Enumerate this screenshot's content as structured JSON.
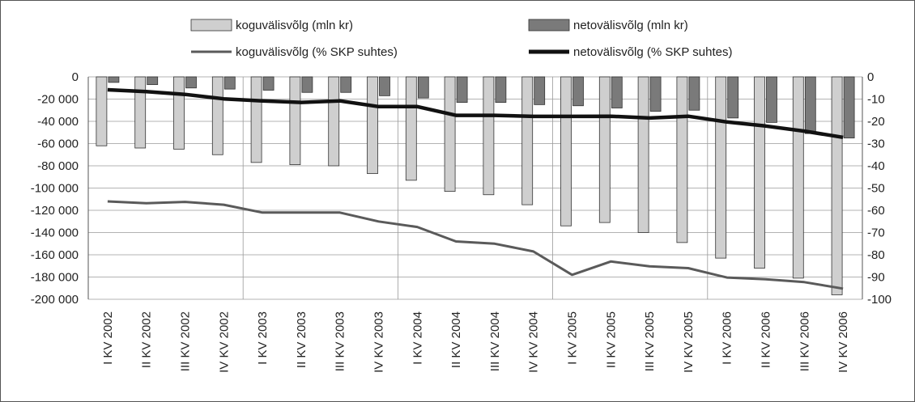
{
  "chart_data": {
    "type": "bar",
    "categories": [
      "I KV 2002",
      "II KV 2002",
      "III KV 2002",
      "IV KV 2002",
      "I KV 2003",
      "II KV 2003",
      "III KV 2003",
      "IV KV 2003",
      "I KV 2004",
      "II KV 2004",
      "III KV 2004",
      "IV KV 2004",
      "I KV 2005",
      "II KV 2005",
      "III KV 2005",
      "IV KV 2005",
      "I KV 2006",
      "II KV 2006",
      "III KV 2006",
      "IV KV 2006"
    ],
    "series": [
      {
        "name": "koguvälisvõlg (mln kr)",
        "type": "bar",
        "axis": "left",
        "color": "#cfcfcf",
        "values": [
          -62000,
          -64000,
          -65000,
          -70000,
          -77000,
          -79000,
          -80000,
          -87000,
          -93000,
          -103000,
          -106000,
          -115000,
          -134000,
          -131000,
          -140000,
          -149000,
          -163000,
          -172000,
          -181000,
          -196000
        ]
      },
      {
        "name": "netovälisvõlg (mln kr)",
        "type": "bar",
        "axis": "left",
        "color": "#7a7a7a",
        "values": [
          -5000,
          -7000,
          -10000,
          -11000,
          -12000,
          -14000,
          -14000,
          -17000,
          -19000,
          -23000,
          -23000,
          -25000,
          -26000,
          -28000,
          -31000,
          -30000,
          -37000,
          -41000,
          -51000,
          -55000
        ]
      },
      {
        "name": "koguvälisvõlg (% SKP suhtes)",
        "type": "line",
        "axis": "right",
        "color": "#5a5a5a",
        "values": [
          -56,
          -56.8,
          -56.2,
          -57.5,
          -61,
          -61,
          -61,
          -65,
          -67.5,
          -74,
          -75,
          -78.5,
          -89,
          -83,
          -85.2,
          -86,
          -90.2,
          -91,
          -92.3,
          -95.2
        ]
      },
      {
        "name": "netovälisvõlg (% SKP suhtes)",
        "type": "line",
        "axis": "right",
        "color": "#111111",
        "values": [
          -5.8,
          -6.6,
          -7.9,
          -9.9,
          -10.8,
          -11.5,
          -10.8,
          -13.4,
          -13.4,
          -17.3,
          -17.3,
          -17.8,
          -17.8,
          -17.7,
          -18.5,
          -17.7,
          -20.3,
          -22.1,
          -24.4,
          -27.2
        ]
      }
    ],
    "y_left": {
      "min": -200000,
      "max": 0,
      "ticks": [
        "0",
        "-20 000",
        "-40 000",
        "-60 000",
        "-80 000",
        "-100 000",
        "-120 000",
        "-140 000",
        "-160 000",
        "-180 000",
        "-200 000"
      ]
    },
    "y_right": {
      "min": -100,
      "max": 0,
      "ticks": [
        "0",
        "-10",
        "-20",
        "-30",
        "-40",
        "-50",
        "-60",
        "-70",
        "-80",
        "-90",
        "-100"
      ]
    },
    "legend_position": "top",
    "grid": true
  }
}
